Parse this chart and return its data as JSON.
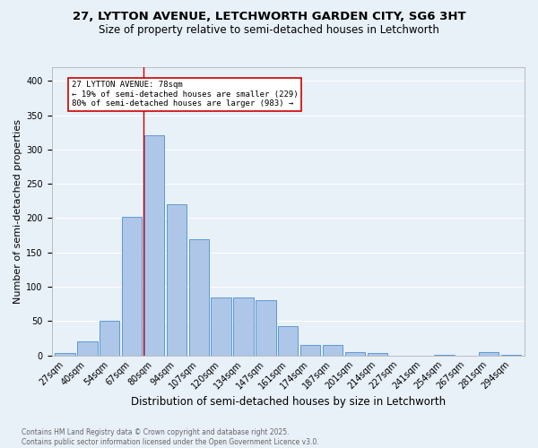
{
  "title_line1": "27, LYTTON AVENUE, LETCHWORTH GARDEN CITY, SG6 3HT",
  "title_line2": "Size of property relative to semi-detached houses in Letchworth",
  "xlabel": "Distribution of semi-detached houses by size in Letchworth",
  "ylabel": "Number of semi-detached properties",
  "footnote": "Contains HM Land Registry data © Crown copyright and database right 2025.\nContains public sector information licensed under the Open Government Licence v3.0.",
  "bin_labels": [
    "27sqm",
    "40sqm",
    "54sqm",
    "67sqm",
    "80sqm",
    "94sqm",
    "107sqm",
    "120sqm",
    "134sqm",
    "147sqm",
    "161sqm",
    "174sqm",
    "187sqm",
    "201sqm",
    "214sqm",
    "227sqm",
    "241sqm",
    "254sqm",
    "267sqm",
    "281sqm",
    "294sqm"
  ],
  "bar_values": [
    3,
    20,
    51,
    202,
    321,
    220,
    169,
    84,
    84,
    81,
    42,
    15,
    15,
    5,
    4,
    0,
    0,
    1,
    0,
    5,
    1
  ],
  "bar_color": "#aec6e8",
  "bar_edge_color": "#5b9bd5",
  "vline_color": "#cc0000",
  "annotation_text": "27 LYTTON AVENUE: 78sqm\n← 19% of semi-detached houses are smaller (229)\n80% of semi-detached houses are larger (983) →",
  "annotation_box_color": "#ffffff",
  "annotation_box_edge": "#cc0000",
  "ylim": [
    0,
    420
  ],
  "yticks": [
    0,
    50,
    100,
    150,
    200,
    250,
    300,
    350,
    400
  ],
  "background_color": "#e8f0f8",
  "plot_background": "#e8f0f8",
  "grid_color": "#ffffff",
  "title_fontsize": 9.5,
  "subtitle_fontsize": 8.5,
  "axis_label_fontsize": 8,
  "tick_fontsize": 7,
  "annotation_fontsize": 6.5,
  "footnote_fontsize": 5.5
}
